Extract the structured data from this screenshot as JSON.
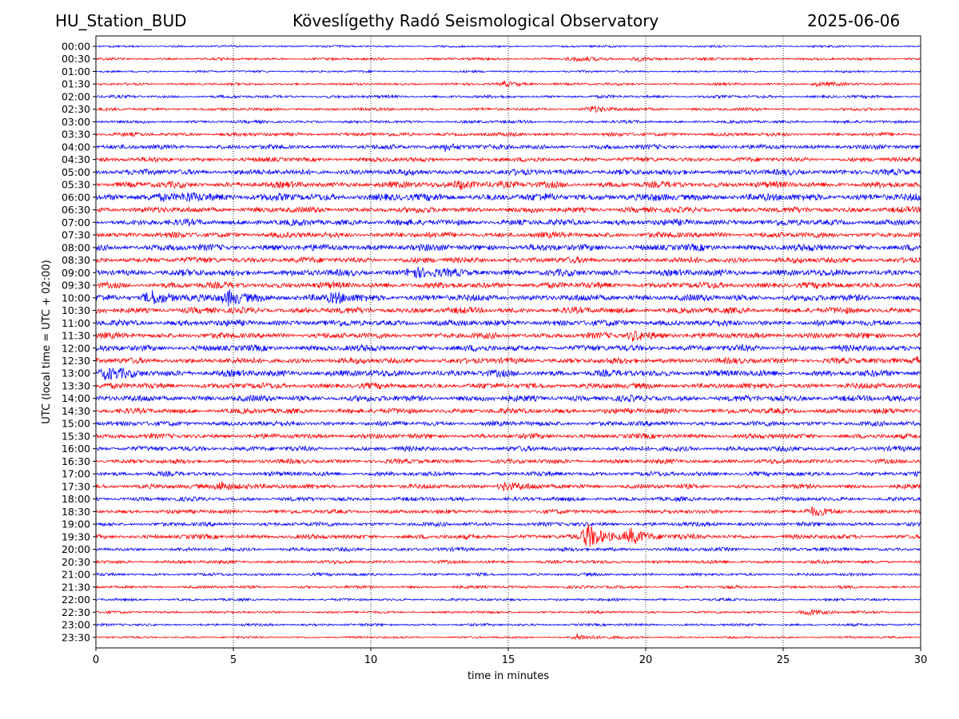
{
  "header": {
    "station": "HU_Station_BUD",
    "observatory": "Köveslígethy Radó Seismological Observatory",
    "date": "2025-06-06"
  },
  "chart_data": {
    "type": "line",
    "title": "Köveslígethy Radó Seismological Observatory",
    "xlabel": "time in minutes",
    "ylabel": "UTC (local time = UTC + 02:00)",
    "xlim": [
      0,
      30
    ],
    "x_ticks": [
      0,
      5,
      10,
      15,
      20,
      25,
      30
    ],
    "grid": "vertical dotted at each x tick",
    "series_colors": [
      "#0000ff",
      "#ff0000"
    ],
    "rows": [
      "00:00",
      "00:30",
      "01:00",
      "01:30",
      "02:00",
      "02:30",
      "03:00",
      "03:30",
      "04:00",
      "04:30",
      "05:00",
      "05:30",
      "06:00",
      "06:30",
      "07:00",
      "07:30",
      "08:00",
      "08:30",
      "09:00",
      "09:30",
      "10:00",
      "10:30",
      "11:00",
      "11:30",
      "12:00",
      "12:30",
      "13:00",
      "13:30",
      "14:00",
      "14:30",
      "15:00",
      "15:30",
      "16:00",
      "16:30",
      "17:00",
      "17:30",
      "18:00",
      "18:30",
      "19:00",
      "19:30",
      "20:00",
      "20:30",
      "21:00",
      "21:30",
      "22:00",
      "22:30",
      "23:00",
      "23:30"
    ],
    "noise_level": [
      0.25,
      0.3,
      0.25,
      0.3,
      0.35,
      0.35,
      0.35,
      0.45,
      0.55,
      0.55,
      0.7,
      0.75,
      0.9,
      0.7,
      0.75,
      0.7,
      0.8,
      0.7,
      0.8,
      0.75,
      0.8,
      0.75,
      0.75,
      0.7,
      0.75,
      0.7,
      0.8,
      0.7,
      0.75,
      0.65,
      0.6,
      0.6,
      0.6,
      0.55,
      0.55,
      0.55,
      0.5,
      0.5,
      0.5,
      0.55,
      0.45,
      0.4,
      0.35,
      0.35,
      0.3,
      0.3,
      0.3,
      0.25
    ],
    "events": [
      {
        "row": "00:30",
        "minute": 17.3,
        "amplitude": 0.7
      },
      {
        "row": "00:30",
        "minute": 19.6,
        "amplitude": 0.6
      },
      {
        "row": "01:30",
        "minute": 14.8,
        "amplitude": 0.6
      },
      {
        "row": "01:30",
        "minute": 26.2,
        "amplitude": 0.6
      },
      {
        "row": "02:30",
        "minute": 18.0,
        "amplitude": 0.8
      },
      {
        "row": "04:00",
        "minute": 12.7,
        "amplitude": 1.0
      },
      {
        "row": "05:30",
        "minute": 13.2,
        "amplitude": 1.3
      },
      {
        "row": "06:00",
        "minute": 3.3,
        "amplitude": 1.2
      },
      {
        "row": "09:00",
        "minute": 11.5,
        "amplitude": 1.6
      },
      {
        "row": "10:00",
        "minute": 1.9,
        "amplitude": 2.2
      },
      {
        "row": "10:00",
        "minute": 4.8,
        "amplitude": 2.0
      },
      {
        "row": "10:00",
        "minute": 8.6,
        "amplitude": 1.4
      },
      {
        "row": "11:30",
        "minute": 19.5,
        "amplitude": 1.3
      },
      {
        "row": "12:30",
        "minute": 29.8,
        "amplitude": 1.3
      },
      {
        "row": "13:00",
        "minute": 0.3,
        "amplitude": 1.4
      },
      {
        "row": "17:30",
        "minute": 4.5,
        "amplitude": 1.5
      },
      {
        "row": "17:30",
        "minute": 14.8,
        "amplitude": 1.3
      },
      {
        "row": "18:30",
        "minute": 26.0,
        "amplitude": 1.0
      },
      {
        "row": "19:30",
        "minute": 17.8,
        "amplitude": 3.8
      },
      {
        "row": "19:30",
        "minute": 19.4,
        "amplitude": 2.2
      },
      {
        "row": "22:30",
        "minute": 25.8,
        "amplitude": 0.9
      },
      {
        "row": "23:30",
        "minute": 17.5,
        "amplitude": 0.9
      }
    ]
  }
}
